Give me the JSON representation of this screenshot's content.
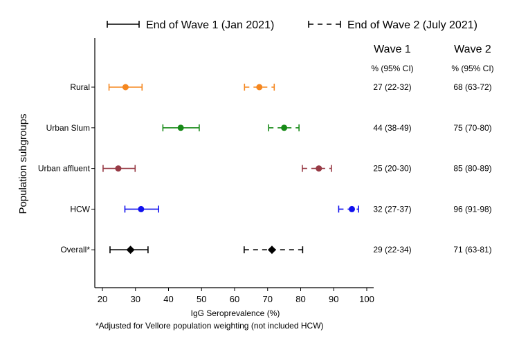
{
  "chart_data": {
    "type": "forest",
    "xlabel": "IgG Seroprevalence (%)",
    "ylabel": "Population subgroups",
    "xlim": [
      18,
      102
    ],
    "xticks": [
      20,
      30,
      40,
      50,
      60,
      70,
      80,
      90,
      100
    ],
    "legend": {
      "placement": "top",
      "entries": [
        {
          "label": "End of Wave 1 (Jan 2021)",
          "style": "solid"
        },
        {
          "label": "End of Wave 2 (July 2021)",
          "style": "dashed"
        }
      ]
    },
    "table_headers": {
      "wave1": "Wave 1",
      "wave2": "Wave 2",
      "sub1": "% (95% CI)",
      "sub2": "% (95% CI)"
    },
    "footnote": "*Adjusted for Vellore population weighting (not included HCW)",
    "rows": [
      {
        "label": "Rural",
        "color": "#f5871f",
        "marker": "circle",
        "w1": [
          27,
          22,
          32
        ],
        "w2": [
          67.5,
          63,
          72
        ],
        "w1_text": "27 (22-32)",
        "w2_text": "68 (63-72)"
      },
      {
        "label": "Urban Slum",
        "color": "#178a17",
        "marker": "circle",
        "w1": [
          43.7,
          38.3,
          49.3
        ],
        "w2": [
          75,
          70.3,
          79.5
        ],
        "w1_text": "44 (38-49)",
        "w2_text": "75 (70-80)"
      },
      {
        "label": "Urban affluent",
        "color": "#973a45",
        "marker": "circle",
        "w1": [
          24.8,
          20.2,
          29.9
        ],
        "w2": [
          85.5,
          80.5,
          89.3
        ],
        "w1_text": "25 (20-30)",
        "w2_text": "85 (80-89)"
      },
      {
        "label": "HCW",
        "color": "#1010ee",
        "marker": "circle",
        "w1": [
          31.7,
          26.8,
          37
        ],
        "w2": [
          95.5,
          91.5,
          97.5
        ],
        "w1_text": "32 (27-37)",
        "w2_text": "96 (91-98)"
      },
      {
        "label": "Overall*",
        "color": "#000000",
        "marker": "diamond",
        "w1": [
          28.5,
          22.3,
          33.8
        ],
        "w2": [
          71.3,
          62.9,
          80.6
        ],
        "w1_text": "29 (22-34)",
        "w2_text": "71 (63-81)"
      }
    ]
  }
}
